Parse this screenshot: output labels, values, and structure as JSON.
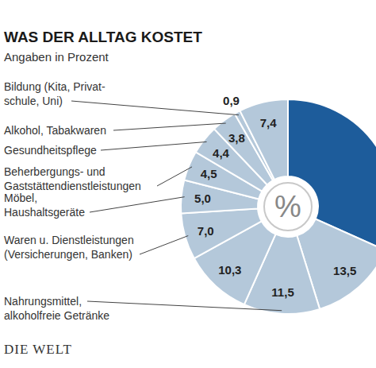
{
  "chart_data": {
    "type": "pie",
    "title": "WAS DER ALLTAG KOSTET",
    "subtitle": "Angaben in Prozent",
    "center_label": "%",
    "source": "DIE WELT",
    "categories": [
      null,
      null,
      "Nahrungsmittel,\nalkoholfreie Getränke",
      null,
      "Waren u. Dienstleistungen\n(Versicherungen, Banken)",
      "Möbel,\nHaushaltsgeräte",
      "Beherbergungs- und\nGaststättendienstleistungen",
      "Gesundheitspflege",
      "Alkohol, Tabakwaren",
      "Bildung (Kita, Privat-\nschule, Uni)",
      null
    ],
    "values": [
      31.7,
      13.5,
      11.5,
      10.3,
      7.0,
      5.0,
      4.5,
      4.4,
      3.8,
      0.9,
      7.4
    ],
    "value_labels": [
      null,
      "13,5",
      "11,5",
      "10,3",
      "7,0",
      "5,0",
      "4,5",
      "4,4",
      "3,8",
      "0,9",
      "7,4"
    ],
    "colors": [
      "#1d5c9b",
      "#b4c8da",
      "#b4c8da",
      "#b4c8da",
      "#b4c8da",
      "#b4c8da",
      "#b4c8da",
      "#b4c8da",
      "#b4c8da",
      "#b4c8da",
      "#b4c8da"
    ],
    "data_labels": true
  }
}
